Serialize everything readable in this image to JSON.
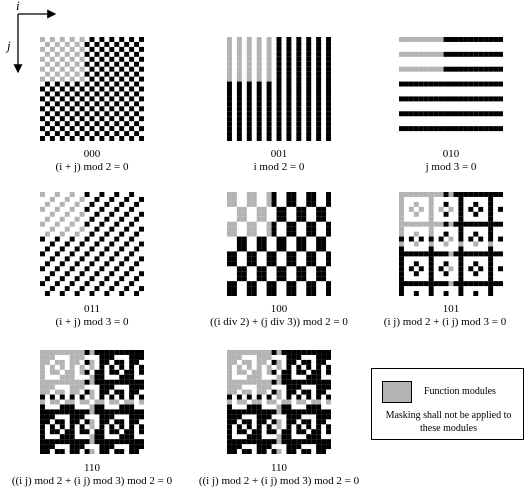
{
  "axes": {
    "i_label": "i",
    "j_label": "j"
  },
  "panels": [
    {
      "code": "000",
      "formula": "(i + j) mod 2 = 0"
    },
    {
      "code": "001",
      "formula": "i mod 2 = 0"
    },
    {
      "code": "010",
      "formula": "j mod 3 = 0"
    },
    {
      "code": "011",
      "formula": "(i + j) mod 3 = 0"
    },
    {
      "code": "100",
      "formula": "((i div 2) + (j div 3)) mod 2 = 0"
    },
    {
      "code": "101",
      "formula": "(i j) mod 2 + (i j) mod 3 = 0"
    },
    {
      "code": "110",
      "formula": "((i j) mod 2 + (i j) mod 3) mod 2 = 0"
    },
    {
      "code": "110",
      "formula": "((i j) mod 2 + (i j) mod 3) mod 2 = 0"
    }
  ],
  "legend": {
    "swatch_color": "#b3b3b3",
    "label": "Function modules",
    "note": "Masking shall not be applied to these modules"
  },
  "colors": {
    "dark": "#000000",
    "function": "#b3b3b3",
    "light": "#ffffff"
  }
}
